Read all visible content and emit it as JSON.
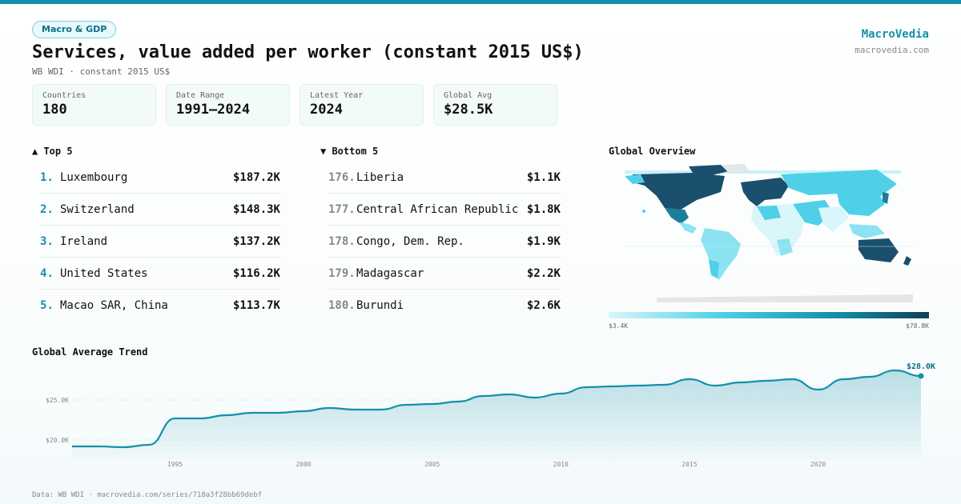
{
  "header": {
    "badge": "Macro & GDP",
    "title": "Services, value added per worker (constant 2015 US$)",
    "subtitle": "WB WDI · constant 2015 US$",
    "brand": "MacroVedia",
    "brand_url": "macrovedia.com"
  },
  "stats": [
    {
      "label": "Countries",
      "value": "180"
    },
    {
      "label": "Date Range",
      "value": "1991–2024"
    },
    {
      "label": "Latest Year",
      "value": "2024"
    },
    {
      "label": "Global Avg",
      "value": "$28.5K"
    }
  ],
  "top5": {
    "heading": "▲ Top 5",
    "items": [
      {
        "rank": "1.",
        "name": "Luxembourg",
        "value": "$187.2K"
      },
      {
        "rank": "2.",
        "name": "Switzerland",
        "value": "$148.3K"
      },
      {
        "rank": "3.",
        "name": "Ireland",
        "value": "$137.2K"
      },
      {
        "rank": "4.",
        "name": "United States",
        "value": "$116.2K"
      },
      {
        "rank": "5.",
        "name": "Macao SAR, China",
        "value": "$113.7K"
      }
    ]
  },
  "bottom5": {
    "heading": "▼ Bottom 5",
    "items": [
      {
        "rank": "176.",
        "name": "Liberia",
        "value": "$1.1K"
      },
      {
        "rank": "177.",
        "name": "Central African Republic",
        "value": "$1.8K"
      },
      {
        "rank": "178.",
        "name": "Congo, Dem. Rep.",
        "value": "$1.9K"
      },
      {
        "rank": "179.",
        "name": "Madagascar",
        "value": "$2.2K"
      },
      {
        "rank": "180.",
        "name": "Burundi",
        "value": "$2.6K"
      }
    ]
  },
  "map": {
    "heading": "Global Overview",
    "legend_min": "$3.4K",
    "legend_max": "$78.8K",
    "colors": {
      "low": "#d9f6fb",
      "mid": "#4fd0e8",
      "high": "#1590aa",
      "max": "#0f3f5a",
      "nodata": "#e4e6ea"
    }
  },
  "trend": {
    "heading": "Global Average Trend",
    "end_label": "$28.0K"
  },
  "footer": "Data: WB WDI · macrovedia.com/series/718a3f28bb69debf",
  "chart_data": {
    "type": "area",
    "title": "Global Average Trend",
    "x": [
      1991,
      1992,
      1993,
      1994,
      1995,
      1996,
      1997,
      1998,
      1999,
      2000,
      2001,
      2002,
      2003,
      2004,
      2005,
      2006,
      2007,
      2008,
      2009,
      2010,
      2011,
      2012,
      2013,
      2014,
      2015,
      2016,
      2017,
      2018,
      2019,
      2020,
      2021,
      2022,
      2023,
      2024
    ],
    "values": [
      19.2,
      19.2,
      19.1,
      19.4,
      22.7,
      22.7,
      23.1,
      23.4,
      23.4,
      23.6,
      24.0,
      23.8,
      23.8,
      24.4,
      24.5,
      24.8,
      25.5,
      25.7,
      25.3,
      25.8,
      26.6,
      26.7,
      26.8,
      26.9,
      27.6,
      26.8,
      27.2,
      27.4,
      27.6,
      26.3,
      27.6,
      27.9,
      28.7,
      28.0
    ],
    "x_ticks": [
      1995,
      2000,
      2005,
      2010,
      2015,
      2020
    ],
    "y_ticks": [
      20,
      25
    ],
    "y_tick_labels": [
      "$20.0K",
      "$25.0K"
    ],
    "ylim": [
      17.5,
      29.5
    ],
    "line_color": "#1590aa"
  }
}
